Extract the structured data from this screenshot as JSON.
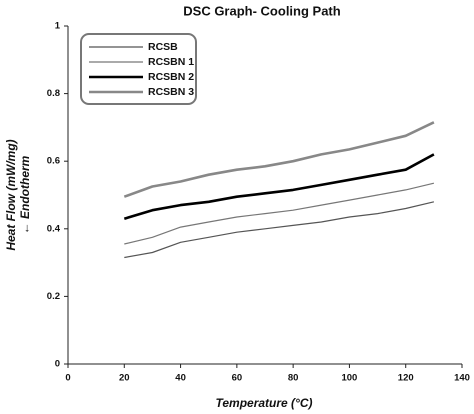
{
  "chart_data": {
    "type": "line",
    "title": "DSC Graph- Cooling Path",
    "x_label": "Temperature (°C)",
    "y_label": [
      "Heat Flow (mW/mg)",
      "← Endotherm"
    ],
    "x": [
      20,
      30,
      40,
      50,
      60,
      70,
      80,
      90,
      100,
      110,
      120,
      130
    ],
    "series": [
      {
        "name": "RCSB",
        "color": "#555555",
        "values": [
          0.315,
          0.33,
          0.36,
          0.375,
          0.39,
          0.4,
          0.41,
          0.42,
          0.435,
          0.445,
          0.46,
          0.48
        ]
      },
      {
        "name": "RCSBN 1",
        "color": "#777777",
        "values": [
          0.355,
          0.375,
          0.405,
          0.42,
          0.435,
          0.445,
          0.455,
          0.47,
          0.485,
          0.5,
          0.515,
          0.535
        ]
      },
      {
        "name": "RCSBN 2",
        "color": "#000000",
        "values": [
          0.43,
          0.455,
          0.47,
          0.48,
          0.495,
          0.505,
          0.515,
          0.53,
          0.545,
          0.56,
          0.575,
          0.62
        ]
      },
      {
        "name": "RCSBN 3",
        "color": "#888888",
        "values": [
          0.495,
          0.525,
          0.54,
          0.56,
          0.575,
          0.585,
          0.6,
          0.62,
          0.635,
          0.655,
          0.675,
          0.715
        ]
      }
    ],
    "xlim": [
      0,
      140
    ],
    "xticks": [
      0,
      20,
      40,
      60,
      80,
      100,
      120,
      140
    ],
    "ylim": [
      0,
      1
    ],
    "yticks": [
      0,
      0.2,
      0.4,
      0.6,
      0.8,
      1
    ],
    "grid": false,
    "legend": "upper left"
  }
}
